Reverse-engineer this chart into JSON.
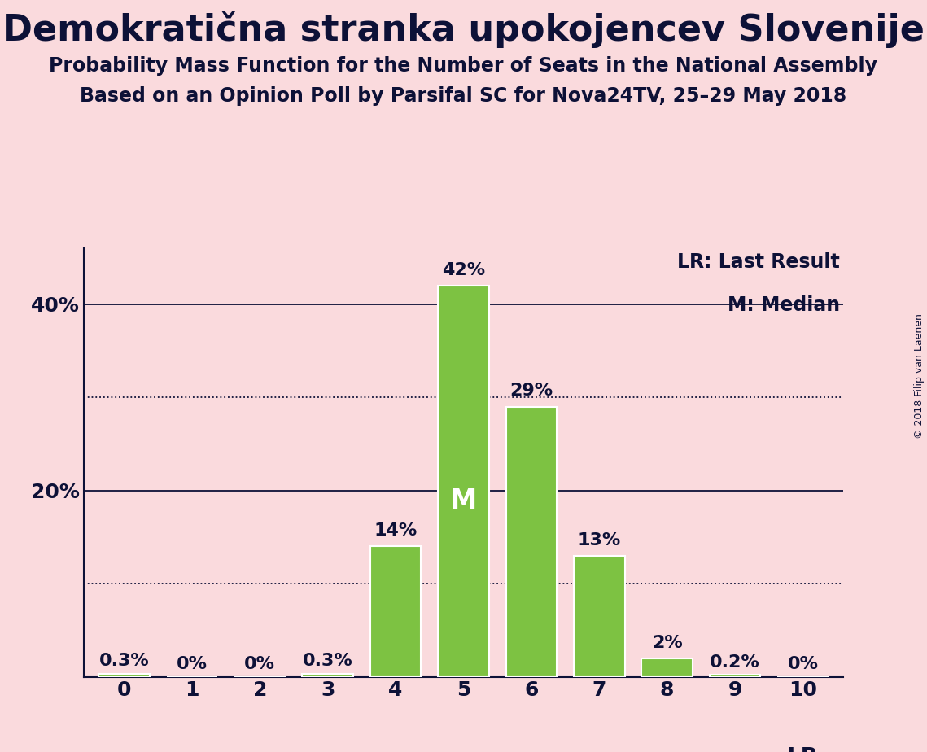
{
  "title": "Demokratična stranka upokojencev Slovenije",
  "subtitle1": "Probability Mass Function for the Number of Seats in the National Assembly",
  "subtitle2": "Based on an Opinion Poll by Parsifal SC for Nova24TV, 25–29 May 2018",
  "copyright": "© 2018 Filip van Laenen",
  "categories": [
    0,
    1,
    2,
    3,
    4,
    5,
    6,
    7,
    8,
    9,
    10
  ],
  "values": [
    0.3,
    0.0,
    0.0,
    0.3,
    14.0,
    42.0,
    29.0,
    13.0,
    2.0,
    0.2,
    0.0
  ],
  "labels": [
    "0.3%",
    "0%",
    "0%",
    "0.3%",
    "14%",
    "42%",
    "29%",
    "13%",
    "2%",
    "0.2%",
    "0%"
  ],
  "bar_color": "#7DC242",
  "bar_edge_color": "#ffffff",
  "background_color": "#FADADD",
  "text_color": "#0D1137",
  "median_bar": 5,
  "median_label": "M",
  "lr_label": "LR",
  "legend_lr": "LR: Last Result",
  "legend_m": "M: Median",
  "ylim": [
    0,
    46
  ],
  "ytick_solid": [
    20,
    40
  ],
  "ytick_dotted": [
    10,
    30
  ],
  "ytick_labels_map": {
    "20": "20%",
    "40": "40%"
  },
  "title_fontsize": 32,
  "subtitle_fontsize": 17,
  "label_fontsize": 16,
  "tick_fontsize": 18,
  "legend_fontsize": 17,
  "median_label_fontsize": 24,
  "lr_label_fontsize": 20,
  "copyright_fontsize": 9
}
